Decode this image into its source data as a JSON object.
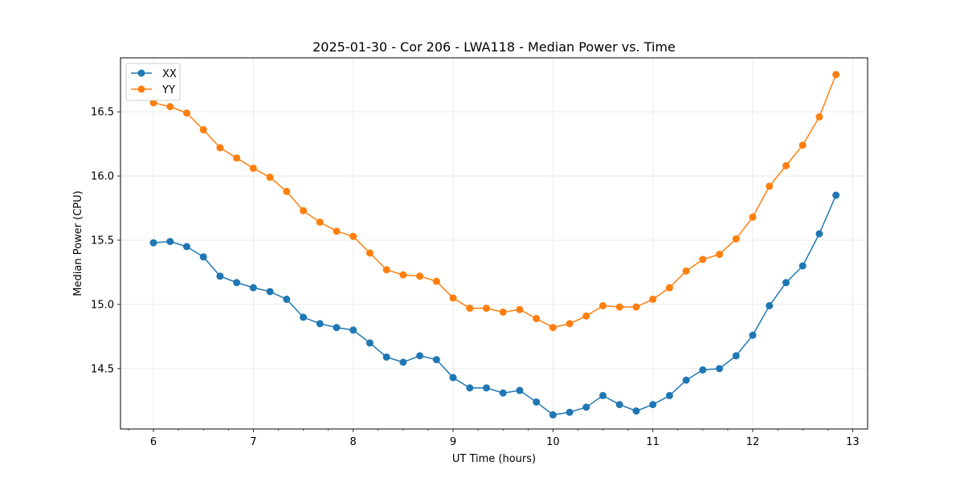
{
  "chart_data": {
    "type": "line",
    "title": "2025-01-30 - Cor 206 - LWA118 - Median Power vs. Time",
    "xlabel": "UT Time (hours)",
    "ylabel": "Median Power (CPU)",
    "xlim": [
      5.67,
      13.15
    ],
    "ylim": [
      14.03,
      16.92
    ],
    "xticks": [
      6,
      7,
      8,
      9,
      10,
      11,
      12,
      13
    ],
    "xtick_labels": [
      "6",
      "7",
      "8",
      "9",
      "10",
      "11",
      "12",
      "13"
    ],
    "xminor_step": 0.25,
    "yticks": [
      14.5,
      15.0,
      15.5,
      16.0,
      16.5
    ],
    "ytick_labels": [
      "14.5",
      "15.0",
      "15.5",
      "16.0",
      "16.5"
    ],
    "grid": true,
    "legend_position": "top-left",
    "x": [
      6.0,
      6.1667,
      6.3333,
      6.5,
      6.6667,
      6.8333,
      7.0,
      7.1667,
      7.3333,
      7.5,
      7.6667,
      7.8333,
      8.0,
      8.1667,
      8.3333,
      8.5,
      8.6667,
      8.8333,
      9.0,
      9.1667,
      9.3333,
      9.5,
      9.6667,
      9.8333,
      10.0,
      10.1667,
      10.3333,
      10.5,
      10.6667,
      10.8333,
      11.0,
      11.1667,
      11.3333,
      11.5,
      11.6667,
      11.8333,
      12.0,
      12.1667,
      12.3333,
      12.5,
      12.6667,
      12.8333
    ],
    "series": [
      {
        "name": "XX",
        "color": "#1f77b4",
        "values": [
          15.48,
          15.49,
          15.45,
          15.37,
          15.22,
          15.17,
          15.13,
          15.1,
          15.04,
          14.9,
          14.85,
          14.82,
          14.8,
          14.7,
          14.59,
          14.55,
          14.6,
          14.57,
          14.43,
          14.35,
          14.35,
          14.31,
          14.33,
          14.24,
          14.14,
          14.16,
          14.2,
          14.29,
          14.22,
          14.17,
          14.22,
          14.29,
          14.41,
          14.49,
          14.5,
          14.6,
          14.76,
          14.99,
          15.17,
          15.3,
          15.55,
          15.85
        ]
      },
      {
        "name": "YY",
        "color": "#ff7f0e",
        "values": [
          16.57,
          16.54,
          16.49,
          16.36,
          16.22,
          16.14,
          16.06,
          15.99,
          15.88,
          15.73,
          15.64,
          15.57,
          15.53,
          15.4,
          15.27,
          15.23,
          15.22,
          15.18,
          15.05,
          14.97,
          14.97,
          14.94,
          14.96,
          14.89,
          14.82,
          14.85,
          14.91,
          14.99,
          14.98,
          14.98,
          15.04,
          15.13,
          15.26,
          15.35,
          15.39,
          15.51,
          15.68,
          15.92,
          16.08,
          16.24,
          16.46,
          16.79
        ]
      }
    ]
  }
}
